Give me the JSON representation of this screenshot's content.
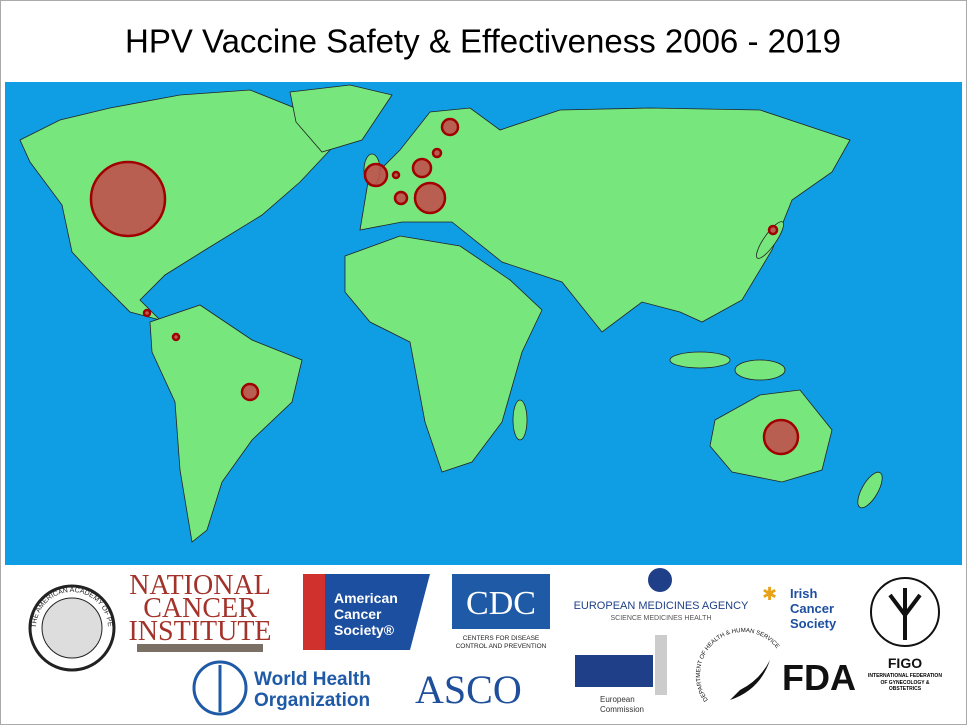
{
  "header": {
    "title": "HPV Vaccine Safety & Effectiveness 2006 - 2019"
  },
  "logos": [
    {
      "name": "aap",
      "lines": [
        "THE AMERICAN ACADEMY OF PEDIATRICS"
      ]
    },
    {
      "name": "nci",
      "lines": [
        "NATIONAL",
        "CANCER",
        "INSTITUTE"
      ]
    },
    {
      "name": "acs",
      "lines": [
        "American",
        "Cancer",
        "Society®"
      ]
    },
    {
      "name": "cdc",
      "lines": [
        "CDC",
        "CENTERS FOR DISEASE",
        "CONTROL AND PREVENTION"
      ]
    },
    {
      "name": "ema",
      "lines": [
        "EUROPEAN MEDICINES AGENCY",
        "SCIENCE  MEDICINES  HEALTH"
      ]
    },
    {
      "name": "irish",
      "lines": [
        "Irish",
        "Cancer",
        "Society"
      ]
    },
    {
      "name": "figo",
      "lines": [
        "FIGO",
        "INTERNATIONAL FEDERATION OF GYNECOLOGY & OBSTETRICS"
      ]
    },
    {
      "name": "who",
      "lines": [
        "World Health",
        "Organization"
      ]
    },
    {
      "name": "asco",
      "lines": [
        "ASCO"
      ]
    },
    {
      "name": "ec",
      "lines": [
        "European",
        "Commission"
      ]
    },
    {
      "name": "fda",
      "lines": [
        "DEPARTMENT OF HEALTH & HUMAN SERVICES USA",
        "FDA"
      ]
    }
  ]
}
